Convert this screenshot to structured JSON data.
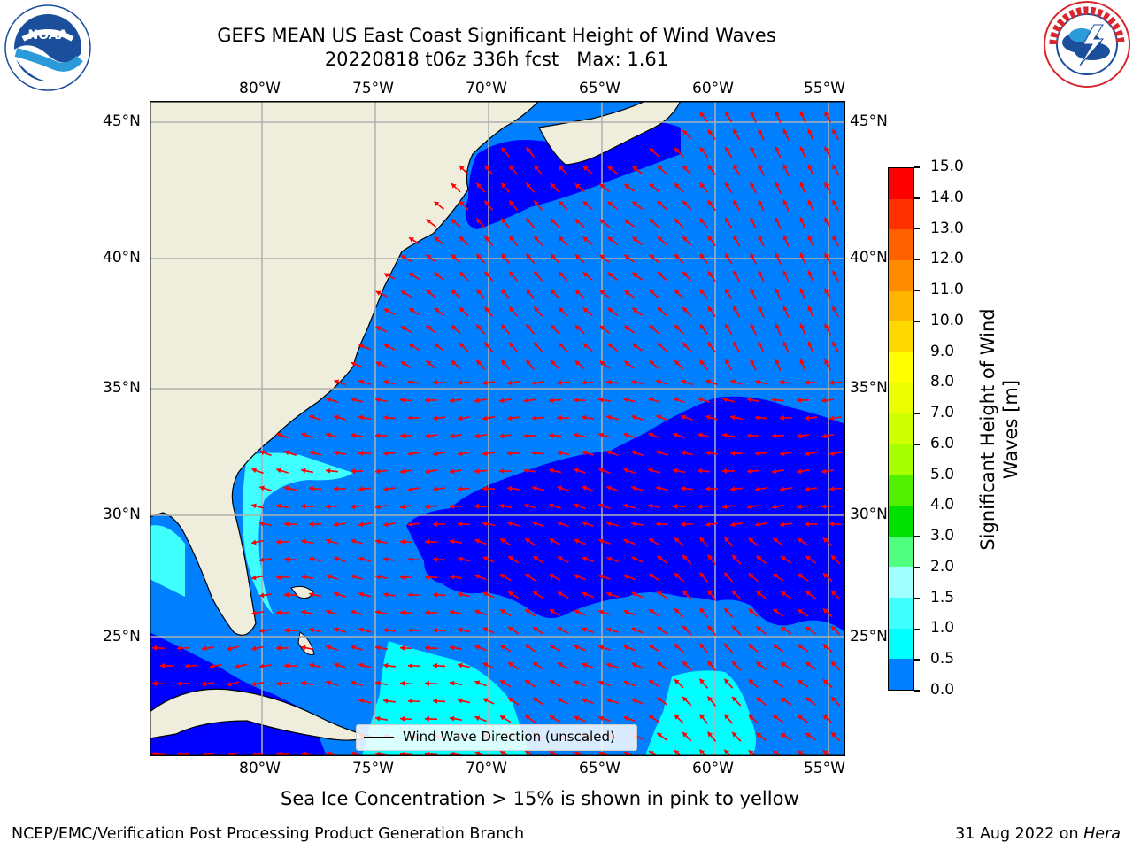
{
  "title": {
    "line1": "GEFS MEAN US East Coast Significant Height of Wind Waves",
    "line2": "20220818 t06z 336h fcst   Max: 1.61"
  },
  "logos": {
    "left": {
      "text": "NOAA",
      "ring_text": "NATIONAL OCEANIC AND ATMOSPHERIC ADMINISTRATION · U.S. DEPARTMENT OF COMMERCE",
      "color": "#1b4f9c"
    },
    "right": {
      "ring_text": "NATIONAL WEATHER SERVICE",
      "color": "#d8262c"
    }
  },
  "map": {
    "lon_labels": [
      "80°W",
      "75°W",
      "70°W",
      "65°W",
      "60°W",
      "55°W"
    ],
    "lat_labels": [
      "45°N",
      "40°N",
      "35°N",
      "30°N",
      "25°N"
    ],
    "legend_label": "Wind Wave Direction (unscaled)",
    "colors": {
      "land": "#efeedd",
      "level_0_0_5": "#0000ff",
      "level_0_5_1_0": "#0080ff",
      "level_1_0_1_5": "#00ffff",
      "level_1_5_2_0": "#40ffff",
      "arrow": "#ff0000",
      "grid": "#b0b0b0"
    }
  },
  "colorbar": {
    "label": "Significant Height of Wind Waves [m]",
    "label_line1": "Significant Height of Wind",
    "label_line2": "Waves [m]",
    "ticks": [
      "15.0",
      "14.0",
      "13.0",
      "12.0",
      "11.0",
      "10.0",
      "9.0",
      "8.0",
      "7.0",
      "6.0",
      "5.0",
      "4.0",
      "3.0",
      "2.0",
      "1.5",
      "1.0",
      "0.5",
      "0.0"
    ],
    "colors": [
      "#ff0000",
      "#ff3000",
      "#ff6000",
      "#ff8c00",
      "#ffb400",
      "#ffd800",
      "#ffff00",
      "#ecff00",
      "#d0ff00",
      "#a8ff00",
      "#50f000",
      "#00e000",
      "#50ff80",
      "#a0ffff",
      "#40ffff",
      "#00ffff",
      "#0080ff",
      "#0000ff"
    ]
  },
  "caption": "Sea Ice Concentration > 15% is shown in pink to yellow",
  "footer": {
    "left": "NCEP/EMC/Verification Post Processing Product Generation Branch",
    "date": "31 Aug 2022 on ",
    "machine": "Hera"
  }
}
